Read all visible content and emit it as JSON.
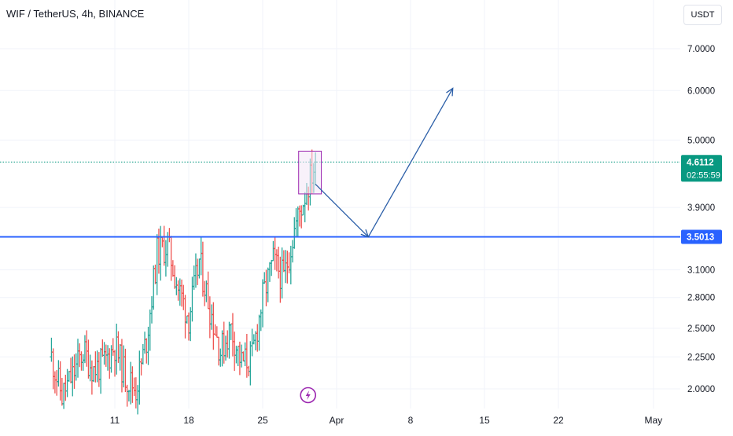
{
  "header": {
    "symbol_title": "WIF / TetherUS, 4h, BINANCE",
    "currency_label": "USDT"
  },
  "colors": {
    "up": "#26a69a",
    "down": "#ef5350",
    "support_line": "#2962ff",
    "current_price": "#089981",
    "drawing": "#2c5fa8",
    "box_border": "#9c27b0",
    "box_fill": "#f3e5f5",
    "grid": "#f0f3fa"
  },
  "icons": {
    "lightning": "lightning-icon"
  },
  "chart_data": {
    "type": "ohlc",
    "ticker": "WIF / TetherUS",
    "interval": "4h",
    "exchange": "BINANCE",
    "y_scale": "log",
    "ylim": [
      1.85,
      8.2
    ],
    "y_ticks": [
      "7.0000",
      "6.0000",
      "5.0000",
      "3.9000",
      "3.1000",
      "2.8000",
      "2.5000",
      "2.2500",
      "2.0000"
    ],
    "x_ticks": [
      "11",
      "18",
      "25",
      "Apr",
      "8",
      "15",
      "22",
      "May"
    ],
    "x_tick_dates": [
      "2024-03-11",
      "2024-03-18",
      "2024-03-25",
      "2024-04-01",
      "2024-04-08",
      "2024-04-15",
      "2024-04-22",
      "2024-05-01"
    ],
    "price_range": {
      "start": "2024-03-05",
      "end": "2024-03-30",
      "low": 1.87,
      "high": 4.68
    },
    "price_path": [
      [
        "2024-03-05",
        2.25
      ],
      [
        "2024-03-06",
        1.95
      ],
      [
        "2024-03-07",
        2.1
      ],
      [
        "2024-03-08",
        2.3
      ],
      [
        "2024-03-09",
        2.15
      ],
      [
        "2024-03-10",
        2.2
      ],
      [
        "2024-03-11",
        2.35
      ],
      [
        "2024-03-12",
        2.1
      ],
      [
        "2024-03-13",
        2.0
      ],
      [
        "2024-03-14",
        2.4
      ],
      [
        "2024-03-15",
        3.3
      ],
      [
        "2024-03-16",
        3.4
      ],
      [
        "2024-03-17",
        2.9
      ],
      [
        "2024-03-18",
        2.6
      ],
      [
        "2024-03-19",
        3.2
      ],
      [
        "2024-03-20",
        2.7
      ],
      [
        "2024-03-21",
        2.3
      ],
      [
        "2024-03-22",
        2.5
      ],
      [
        "2024-03-23",
        2.2
      ],
      [
        "2024-03-24",
        2.25
      ],
      [
        "2024-03-25",
        2.8
      ],
      [
        "2024-03-26",
        3.2
      ],
      [
        "2024-03-27",
        3.0
      ],
      [
        "2024-03-28",
        3.6
      ],
      [
        "2024-03-29",
        4.1
      ],
      [
        "2024-03-30",
        4.61
      ]
    ],
    "current_price": "4.6112",
    "countdown": "02:55:59",
    "support_level": "3.5013",
    "support_value": 3.5013,
    "current_value": 4.6112,
    "annotations": {
      "box": {
        "date_start": "2024-03-29",
        "date_end": "2024-03-31",
        "price_low": 4.1,
        "price_high": 4.8
      },
      "arrow_down": {
        "from_date": "2024-03-30",
        "from_price": 4.25,
        "to_date": "2024-04-04",
        "to_price": 3.5
      },
      "arrow_up": {
        "from_date": "2024-04-04",
        "from_price": 3.5,
        "to_date": "2024-04-12",
        "to_price": 6.05
      }
    }
  }
}
